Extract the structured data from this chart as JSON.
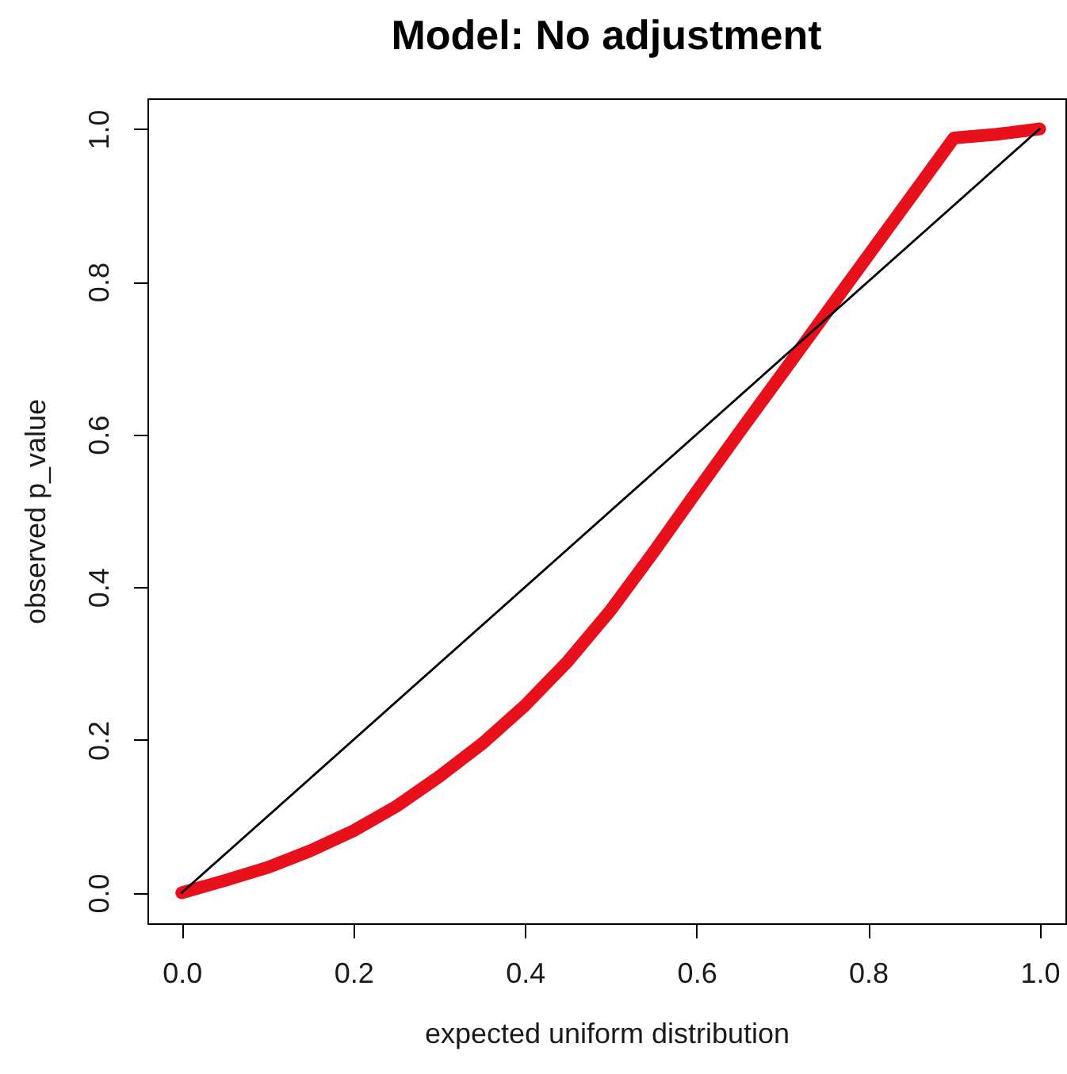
{
  "chart_data": {
    "type": "line",
    "title": "Model: No adjustment",
    "xlabel": "expected uniform distribution",
    "ylabel": "observed p_value",
    "x": [
      0,
      0.05,
      0.1,
      0.15,
      0.2,
      0.25,
      0.3,
      0.35,
      0.4,
      0.45,
      0.5,
      0.55,
      0.6,
      0.65,
      0.7,
      0.75,
      0.8,
      0.85,
      0.9,
      0.95,
      1
    ],
    "series": [
      {
        "color": "#e8101a",
        "values": [
          0,
          0.016,
          0.033,
          0.055,
          0.081,
          0.113,
          0.152,
          0.195,
          0.245,
          0.303,
          0.37,
          0.446,
          0.525,
          0.603,
          0.68,
          0.757,
          0.834,
          0.911,
          0.988,
          0.993,
          1
        ]
      },
      {
        "color": "#000000",
        "x": [
          0,
          1
        ],
        "values": [
          0,
          1
        ]
      }
    ],
    "xlim": [
      -0.04,
      1.03
    ],
    "ylim": [
      -0.04,
      1.04
    ],
    "xticks": [
      {
        "value": 0,
        "label": "0.0"
      },
      0.2,
      0.4,
      0.6,
      0.8,
      {
        "value": 1,
        "label": "1.0"
      }
    ],
    "yticks": [
      {
        "value": 0,
        "label": "0.0"
      },
      0.2,
      0.4,
      0.6,
      0.8,
      {
        "value": 1,
        "label": "1.0"
      }
    ]
  }
}
